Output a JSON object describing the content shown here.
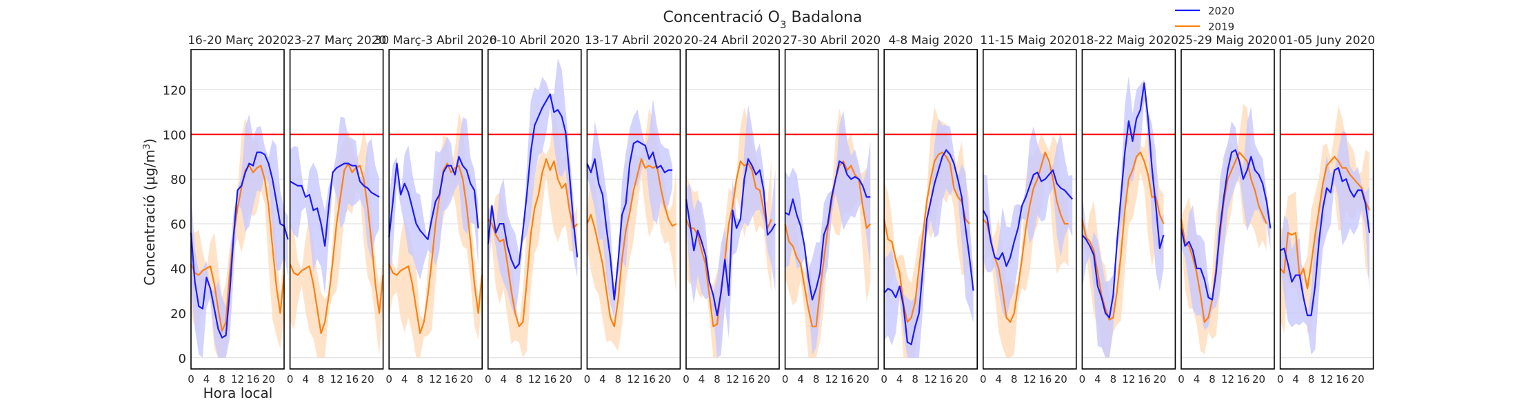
{
  "chart_data": {
    "type": "line",
    "title": "Concentració O₃ Badalona",
    "ylabel": "Concentració (µg/m³)",
    "xlabel": "Hora local",
    "ylim": [
      -5,
      138
    ],
    "xlim": [
      0,
      24
    ],
    "yticks": [
      0,
      20,
      40,
      60,
      80,
      100,
      120
    ],
    "xticks": [
      "0",
      "4",
      "8",
      "12",
      "16",
      "20"
    ],
    "threshold": 100,
    "grid": true,
    "legend_position": "top-right",
    "colors": {
      "2020": "#1a1aff",
      "2019": "#ff7f0e",
      "threshold": "#ff0000",
      "band2020": "#c8c8ff",
      "band2019": "#ffdcbc"
    },
    "series_names": [
      "2020",
      "2019"
    ],
    "panels": [
      {
        "title": "16-20 Març 2020",
        "y2020": [
          56,
          34,
          23,
          22,
          36,
          31,
          22,
          13,
          9,
          10,
          30,
          55,
          75,
          77,
          83,
          87,
          86,
          92,
          92,
          91,
          87,
          80,
          70,
          60,
          59,
          53
        ],
        "y2019": [
          42,
          38,
          37,
          39,
          40,
          41,
          33,
          22,
          12,
          16,
          38,
          55,
          67,
          76,
          84,
          86,
          83,
          85,
          86,
          80,
          68,
          50,
          32,
          20,
          37
        ]
      },
      {
        "title": "23-27 Març 2020",
        "y2020": [
          79,
          78,
          77,
          77,
          72,
          73,
          66,
          67,
          60,
          50,
          68,
          83,
          85,
          86,
          87,
          87,
          86,
          86,
          79,
          77,
          76,
          74,
          73,
          72
        ],
        "y2019": [
          42,
          38,
          37,
          39,
          40,
          41,
          33,
          22,
          11,
          16,
          28,
          43,
          60,
          72,
          84,
          87,
          83,
          85,
          86,
          80,
          68,
          52,
          33,
          20,
          37
        ]
      },
      {
        "title": "30 Març-3 Abril 2020",
        "y2020": [
          54,
          70,
          87,
          73,
          78,
          74,
          67,
          60,
          57,
          55,
          53,
          62,
          70,
          73,
          83,
          86,
          86,
          82,
          90,
          86,
          84,
          78,
          75,
          58
        ],
        "y2019": [
          42,
          38,
          37,
          39,
          40,
          41,
          33,
          22,
          11,
          16,
          28,
          43,
          60,
          72,
          84,
          87,
          83,
          85,
          86,
          80,
          68,
          52,
          33,
          20,
          37
        ]
      },
      {
        "title": "6-10 Abril 2020",
        "y2020": [
          51,
          68,
          56,
          60,
          60,
          50,
          44,
          40,
          42,
          57,
          73,
          92,
          104,
          108,
          112,
          115,
          118,
          110,
          111,
          108,
          101,
          82,
          61,
          45
        ],
        "y2019": [
          62,
          60,
          55,
          52,
          53,
          42,
          30,
          20,
          14,
          16,
          34,
          55,
          67,
          73,
          83,
          89,
          84,
          88,
          80,
          76,
          78,
          66,
          58,
          60
        ]
      },
      {
        "title": "13-17 Abril 2020",
        "y2020": [
          87,
          83,
          89,
          78,
          73,
          58,
          45,
          26,
          43,
          64,
          69,
          87,
          96,
          97,
          96,
          95,
          89,
          92,
          85,
          86,
          83,
          84,
          84
        ],
        "y2019": [
          60,
          64,
          58,
          50,
          42,
          30,
          18,
          14,
          26,
          44,
          57,
          65,
          75,
          82,
          89,
          85,
          86,
          85,
          86,
          76,
          68,
          62,
          59,
          60
        ]
      },
      {
        "title": "20-24 Abril 2020",
        "y2020": [
          71,
          60,
          48,
          57,
          52,
          46,
          34,
          28,
          19,
          29,
          44,
          28,
          66,
          58,
          62,
          80,
          89,
          86,
          82,
          84,
          75,
          55,
          57,
          60
        ],
        "y2019": [
          62,
          58,
          58,
          55,
          48,
          42,
          28,
          14,
          15,
          30,
          44,
          60,
          68,
          80,
          88,
          86,
          87,
          84,
          76,
          75,
          66,
          58,
          62
        ]
      },
      {
        "title": "27-30 Abril 2020",
        "y2020": [
          65,
          64,
          71,
          64,
          59,
          50,
          36,
          26,
          31,
          38,
          55,
          60,
          72,
          80,
          88,
          87,
          82,
          80,
          81,
          80,
          77,
          72,
          72
        ],
        "y2019": [
          60,
          52,
          50,
          45,
          42,
          32,
          22,
          14,
          14,
          30,
          44,
          58,
          70,
          80,
          86,
          88,
          84,
          86,
          82,
          80,
          68,
          58,
          60
        ]
      },
      {
        "title": "4-8 Maig 2020",
        "y2020": [
          29,
          31,
          30,
          27,
          32,
          23,
          7,
          6,
          14,
          20,
          40,
          62,
          70,
          78,
          84,
          90,
          93,
          91,
          87,
          80,
          72,
          58,
          45,
          30
        ],
        "y2019": [
          62,
          53,
          52,
          44,
          38,
          24,
          16,
          18,
          25,
          40,
          55,
          70,
          80,
          88,
          91,
          92,
          90,
          87,
          76,
          72,
          70,
          62,
          60
        ]
      },
      {
        "title": "11-15 Maig 2020",
        "y2020": [
          66,
          63,
          52,
          45,
          44,
          47,
          41,
          45,
          52,
          58,
          68,
          72,
          77,
          82,
          83,
          79,
          80,
          82,
          84,
          78,
          76,
          75,
          73,
          71
        ],
        "y2019": [
          62,
          60,
          52,
          45,
          40,
          30,
          18,
          16,
          20,
          32,
          44,
          58,
          68,
          76,
          80,
          86,
          92,
          88,
          80,
          70,
          64,
          60,
          60
        ]
      },
      {
        "title": "18-22 Maig 2020",
        "y2020": [
          55,
          53,
          50,
          46,
          32,
          27,
          20,
          18,
          28,
          52,
          72,
          92,
          106,
          97,
          107,
          111,
          123,
          107,
          85,
          68,
          49,
          55
        ],
        "y2019": [
          62,
          54,
          52,
          48,
          38,
          28,
          22,
          17,
          18,
          30,
          46,
          66,
          80,
          84,
          90,
          92,
          88,
          82,
          72,
          72,
          64,
          60
        ]
      },
      {
        "title": "25-29 Maig 2020",
        "y2020": [
          58,
          50,
          52,
          48,
          40,
          40,
          35,
          27,
          26,
          38,
          58,
          72,
          84,
          92,
          93,
          88,
          80,
          84,
          90,
          84,
          82,
          78,
          70,
          58
        ],
        "y2019": [
          62,
          52,
          50,
          45,
          38,
          28,
          16,
          18,
          26,
          40,
          55,
          70,
          80,
          84,
          88,
          92,
          90,
          88,
          80,
          75,
          68,
          64,
          60
        ]
      },
      {
        "title": "01-05 Juny 2020",
        "y2020": [
          48,
          49,
          42,
          34,
          37,
          37,
          27,
          19,
          19,
          32,
          52,
          67,
          76,
          74,
          84,
          85,
          79,
          80,
          75,
          72,
          75,
          75,
          69,
          56
        ],
        "y2019": [
          40,
          38,
          56,
          55,
          56,
          36,
          40,
          31,
          42,
          55,
          66,
          78,
          86,
          88,
          90,
          88,
          85,
          85,
          82,
          80,
          78,
          76,
          70,
          66
        ]
      }
    ]
  }
}
